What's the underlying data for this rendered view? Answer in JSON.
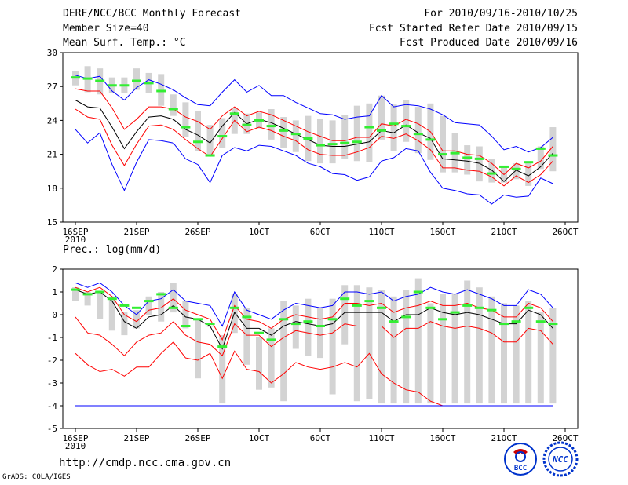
{
  "header": {
    "title": "DERF/NCC/BCC Monthly Forecast",
    "member_size": "Member Size=40",
    "variable": "Mean Surf. Temp.: °C",
    "period": "For 2010/09/16-2010/10/25",
    "started": "Fcst Started Refer Date 2010/09/15",
    "produced": "Fcst Produced Date 2010/09/16"
  },
  "footer": {
    "url": "http://cmdp.ncc.cma.gov.cn",
    "grads": "GrADS: COLA/IGES",
    "logo1_text": "BCC",
    "logo2_text": "NCC"
  },
  "colors": {
    "envelope": "#0000ff",
    "spread": "#ff0000",
    "mean": "#000000",
    "box": "#d3d3d3",
    "median": "#33ee33"
  },
  "chart_data": [
    {
      "type": "box",
      "title": "Mean Surf. Temp.: °C",
      "ylabel": "°C",
      "ylim": [
        15,
        30
      ],
      "yticks": [
        15,
        18,
        21,
        24,
        27,
        30
      ],
      "x": [
        0,
        1,
        2,
        3,
        4,
        5,
        6,
        7,
        8,
        9,
        10,
        11,
        12,
        13,
        14,
        15,
        16,
        17,
        18,
        19,
        20,
        21,
        22,
        23,
        24,
        25,
        26,
        27,
        28,
        29,
        30,
        31,
        32,
        33,
        34,
        35,
        36,
        37,
        38,
        39
      ],
      "xticks": [
        {
          "i": 0,
          "label": "16SEP"
        },
        {
          "i": 5,
          "label": "21SEP"
        },
        {
          "i": 10,
          "label": "26SEP"
        },
        {
          "i": 15,
          "label": "1OCT"
        },
        {
          "i": 20,
          "label": "6OCT"
        },
        {
          "i": 25,
          "label": "11OCT"
        },
        {
          "i": 30,
          "label": "16OCT"
        },
        {
          "i": 35,
          "label": "21OCT"
        },
        {
          "i": 40,
          "label": "26OCT"
        }
      ],
      "xsublabel": "2010",
      "series": [
        {
          "name": "max",
          "color": "#0000ff",
          "values": [
            28.0,
            27.7,
            27.9,
            26.6,
            25.8,
            26.9,
            27.6,
            27.2,
            26.7,
            26.0,
            25.4,
            25.3,
            26.5,
            27.6,
            26.5,
            27.1,
            26.2,
            26.2,
            25.6,
            25.1,
            24.6,
            24.5,
            24.1,
            24.3,
            24.4,
            26.2,
            25.2,
            25.4,
            25.3,
            25.0,
            24.5,
            23.8,
            23.7,
            23.6,
            22.6,
            21.4,
            21.7,
            21.2,
            21.6,
            22.5
          ]
        },
        {
          "name": "mean_plus_sd",
          "color": "#ff0000",
          "values": [
            26.8,
            26.6,
            26.6,
            25.1,
            23.2,
            24.1,
            25.2,
            25.2,
            25.0,
            24.3,
            23.9,
            23.2,
            24.4,
            25.2,
            24.4,
            24.8,
            24.5,
            24.0,
            23.5,
            23.0,
            22.6,
            22.2,
            22.2,
            22.5,
            22.5,
            23.7,
            23.5,
            24.1,
            23.7,
            23.0,
            21.3,
            21.3,
            21.0,
            20.9,
            20.2,
            19.2,
            20.2,
            19.8,
            20.4,
            21.7
          ]
        },
        {
          "name": "mean",
          "color": "#000000",
          "values": [
            25.8,
            25.2,
            25.1,
            23.4,
            21.5,
            23.0,
            24.3,
            24.4,
            24.1,
            23.2,
            22.7,
            22.0,
            23.5,
            24.7,
            23.7,
            24.1,
            23.8,
            23.3,
            22.8,
            22.3,
            21.8,
            21.7,
            21.7,
            21.9,
            22.1,
            23.1,
            22.9,
            23.6,
            22.9,
            22.4,
            20.6,
            20.5,
            20.4,
            20.2,
            19.6,
            18.6,
            19.6,
            19.1,
            19.9,
            21.1
          ]
        },
        {
          "name": "mean_minus_sd",
          "color": "#ff0000",
          "values": [
            25.0,
            24.3,
            24.1,
            21.8,
            20.0,
            21.9,
            23.5,
            23.6,
            23.2,
            22.3,
            21.5,
            20.8,
            22.4,
            24.0,
            23.0,
            23.4,
            23.1,
            22.6,
            22.2,
            21.4,
            21.0,
            20.9,
            20.9,
            21.2,
            21.6,
            22.6,
            22.4,
            22.8,
            22.2,
            21.4,
            19.8,
            19.8,
            19.6,
            19.5,
            19.0,
            18.2,
            19.1,
            18.5,
            19.2,
            20.4
          ]
        },
        {
          "name": "min",
          "color": "#0000ff",
          "values": [
            23.2,
            22.0,
            22.9,
            20.1,
            17.8,
            20.3,
            22.3,
            22.2,
            22.0,
            20.6,
            20.1,
            18.5,
            20.9,
            21.6,
            21.3,
            21.8,
            21.7,
            21.3,
            20.9,
            20.2,
            19.9,
            19.3,
            19.2,
            18.7,
            19.0,
            20.4,
            20.7,
            21.5,
            21.3,
            19.4,
            18.0,
            17.8,
            17.5,
            17.4,
            16.6,
            17.4,
            17.2,
            17.3,
            18.9,
            18.4
          ]
        }
      ],
      "box": {
        "low": [
          27.1,
          26.5,
          26.3,
          26.4,
          26.4,
          26.7,
          26.4,
          25.3,
          24.4,
          22.5,
          21.3,
          21.0,
          21.6,
          22.8,
          22.8,
          23.3,
          22.3,
          21.6,
          21.2,
          20.4,
          20.2,
          20.2,
          20.6,
          20.4,
          20.3,
          22.3,
          21.3,
          22.1,
          21.1,
          20.5,
          19.4,
          19.4,
          19.2,
          18.6,
          18.5,
          18.5,
          18.8,
          18.2,
          19.7,
          19.5
        ],
        "high": [
          28.4,
          28.8,
          28.6,
          27.8,
          27.8,
          28.6,
          28.2,
          28.1,
          26.3,
          25.6,
          24.8,
          23.6,
          24.2,
          25.1,
          24.6,
          24.7,
          25.0,
          24.3,
          24.0,
          24.4,
          24.1,
          24.0,
          24.5,
          25.3,
          25.5,
          26.2,
          25.4,
          25.8,
          25.2,
          25.5,
          24.4,
          22.9,
          21.8,
          21.7,
          20.6,
          19.9,
          20.2,
          20.3,
          21.7,
          23.4
        ],
        "median": [
          27.8,
          27.7,
          27.5,
          27.1,
          27.1,
          27.5,
          27.3,
          26.6,
          25.0,
          23.4,
          22.1,
          20.9,
          22.6,
          24.6,
          23.6,
          24.0,
          23.5,
          23.1,
          22.8,
          22.4,
          21.8,
          21.9,
          22.0,
          22.1,
          23.4,
          23.1,
          23.7,
          23.5,
          22.8,
          22.3,
          21.0,
          21.1,
          20.7,
          20.6,
          19.3,
          19.9,
          19.7,
          20.3,
          21.5,
          20.9
        ]
      }
    },
    {
      "type": "box",
      "title": "Prec.: log(mm/d)",
      "ylabel": "log(mm/d)",
      "ylim": [
        -5,
        2
      ],
      "yticks": [
        -5,
        -4,
        -3,
        -2,
        -1,
        0,
        1,
        2
      ],
      "x": [
        0,
        1,
        2,
        3,
        4,
        5,
        6,
        7,
        8,
        9,
        10,
        11,
        12,
        13,
        14,
        15,
        16,
        17,
        18,
        19,
        20,
        21,
        22,
        23,
        24,
        25,
        26,
        27,
        28,
        29,
        30,
        31,
        32,
        33,
        34,
        35,
        36,
        37,
        38,
        39
      ],
      "xticks": [
        {
          "i": 0,
          "label": "16SEP"
        },
        {
          "i": 5,
          "label": "21SEP"
        },
        {
          "i": 10,
          "label": "26SEP"
        },
        {
          "i": 15,
          "label": "1OCT"
        },
        {
          "i": 20,
          "label": "6OCT"
        },
        {
          "i": 25,
          "label": "11OCT"
        },
        {
          "i": 30,
          "label": "16OCT"
        },
        {
          "i": 35,
          "label": "21OCT"
        },
        {
          "i": 40,
          "label": "26OCT"
        }
      ],
      "xsublabel": "2010",
      "series": [
        {
          "name": "max",
          "color": "#0000ff",
          "values": [
            1.4,
            1.2,
            1.4,
            1.0,
            0.4,
            0.0,
            0.6,
            0.7,
            1.1,
            0.6,
            0.5,
            0.4,
            -0.5,
            1.0,
            0.2,
            0.0,
            -0.2,
            0.2,
            0.5,
            0.4,
            0.3,
            0.4,
            1.0,
            1.0,
            0.9,
            1.0,
            0.6,
            0.8,
            0.9,
            1.2,
            1.0,
            0.9,
            1.1,
            0.9,
            0.7,
            0.4,
            0.4,
            1.1,
            0.9,
            0.3
          ]
        },
        {
          "name": "mean_plus_sd",
          "color": "#ff0000",
          "values": [
            1.2,
            1.0,
            1.2,
            0.8,
            0.0,
            -0.3,
            0.2,
            0.3,
            0.7,
            0.2,
            0.0,
            -0.2,
            -1.1,
            0.4,
            -0.2,
            -0.3,
            -0.6,
            -0.2,
            0.0,
            -0.1,
            -0.2,
            -0.1,
            0.5,
            0.5,
            0.4,
            0.5,
            0.1,
            0.3,
            0.4,
            0.6,
            0.4,
            0.4,
            0.5,
            0.3,
            0.2,
            -0.1,
            -0.1,
            0.5,
            0.3,
            -0.3
          ]
        },
        {
          "name": "mean",
          "color": "#000000",
          "values": [
            1.1,
            0.9,
            1.0,
            0.6,
            -0.3,
            -0.6,
            -0.1,
            0.0,
            0.4,
            -0.1,
            -0.2,
            -0.5,
            -1.5,
            0.1,
            -0.6,
            -0.6,
            -0.9,
            -0.5,
            -0.3,
            -0.4,
            -0.5,
            -0.4,
            0.1,
            0.1,
            0.1,
            0.1,
            -0.3,
            0.0,
            0.0,
            0.3,
            0.1,
            0.0,
            0.1,
            0.0,
            -0.2,
            -0.4,
            -0.4,
            0.2,
            0.0,
            -0.6
          ]
        },
        {
          "name": "mean_minus_sd",
          "color": "#ff0000",
          "values": [
            -0.1,
            -0.8,
            -0.9,
            -1.3,
            -1.8,
            -1.2,
            -0.9,
            -0.8,
            -0.3,
            -0.9,
            -1.2,
            -1.3,
            -1.8,
            -0.4,
            -0.9,
            -0.9,
            -1.4,
            -1.0,
            -0.7,
            -0.8,
            -0.9,
            -0.8,
            -0.4,
            -0.5,
            -0.5,
            -0.5,
            -1.0,
            -0.6,
            -0.6,
            -0.3,
            -0.5,
            -0.6,
            -0.5,
            -0.6,
            -0.8,
            -1.2,
            -1.2,
            -0.6,
            -0.7,
            -1.3
          ]
        },
        {
          "name": "min",
          "color": "#ff0000",
          "values": [
            -1.7,
            -2.2,
            -2.5,
            -2.4,
            -2.7,
            -2.3,
            -2.3,
            -1.7,
            -1.2,
            -1.9,
            -2.0,
            -1.7,
            -2.8,
            -1.6,
            -2.4,
            -2.5,
            -3.0,
            -2.6,
            -2.1,
            -2.3,
            -2.4,
            -2.3,
            -2.1,
            -2.3,
            -1.7,
            -2.6,
            -3.0,
            -3.3,
            -3.4,
            -3.8,
            -4.0,
            -4.0,
            -4.0,
            -4.0,
            -4.0,
            -4.0,
            -4.0,
            -4.0,
            -4.0,
            -4.0
          ]
        },
        {
          "name": "floor",
          "color": "#0000ff",
          "values": [
            -4.0,
            -4.0,
            -4.0,
            -4.0,
            -4.0,
            -4.0,
            -4.0,
            -4.0,
            -4.0,
            -4.0,
            -4.0,
            -4.0,
            -4.0,
            -4.0,
            -4.0,
            -4.0,
            -4.0,
            -4.0,
            -4.0,
            -4.0,
            -4.0,
            -4.0,
            -4.0,
            -4.0,
            -4.0,
            -4.0,
            -4.0,
            -4.0,
            -4.0,
            -4.0,
            -4.0,
            -4.0,
            -4.0,
            -4.0,
            -4.0,
            -4.0,
            -4.0,
            -4.0,
            -4.0,
            -4.0
          ]
        }
      ],
      "box": {
        "low": [
          0.6,
          0.4,
          -0.2,
          -0.7,
          -0.9,
          -0.6,
          0.0,
          -0.3,
          0.1,
          -0.6,
          -2.8,
          -0.5,
          -3.9,
          -0.8,
          -2.2,
          -3.3,
          -3.2,
          -3.8,
          -1.5,
          -1.8,
          -1.9,
          -3.5,
          -1.3,
          -3.8,
          -3.7,
          -3.9,
          -3.9,
          -3.9,
          -3.9,
          -3.9,
          -3.9,
          -3.9,
          -3.9,
          -3.9,
          -3.9,
          -3.9,
          -3.9,
          -3.9,
          -3.9,
          -3.9
        ],
        "high": [
          1.2,
          1.0,
          1.0,
          0.8,
          0.1,
          0.2,
          0.8,
          1.0,
          1.4,
          0.6,
          -0.2,
          -0.5,
          -0.9,
          0.9,
          0.3,
          -1.0,
          -0.6,
          0.6,
          0.4,
          0.7,
          0.3,
          0.7,
          1.3,
          1.3,
          1.2,
          1.1,
          0.8,
          1.1,
          1.6,
          0.5,
          0.9,
          0.9,
          1.5,
          1.2,
          0.8,
          0.5,
          0.4,
          0.6,
          0.1,
          0.3
        ],
        "median": [
          1.1,
          0.9,
          1.0,
          0.7,
          0.4,
          0.3,
          0.6,
          0.9,
          0.3,
          -0.5,
          -0.2,
          -0.4,
          -1.4,
          0.3,
          -0.1,
          -0.8,
          -1.1,
          -0.2,
          -0.4,
          -0.3,
          -0.5,
          -0.2,
          0.7,
          0.4,
          0.6,
          0.3,
          -0.3,
          -0.1,
          1.0,
          0.3,
          -0.2,
          0.1,
          0.4,
          0.3,
          0.2,
          -0.4,
          -0.3,
          0.3,
          -0.3,
          -0.4
        ]
      }
    }
  ]
}
